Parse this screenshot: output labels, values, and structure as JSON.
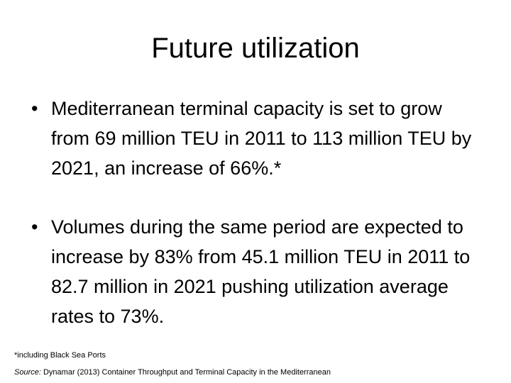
{
  "title": "Future utilization",
  "bullets": [
    "Mediterranean terminal capacity is set to grow from 69 million TEU in 2011 to 113 million TEU by 2021, an increase of 66%.*",
    "Volumes during the same period are expected to increase by 83% from 45.1 million TEU in 2011 to 82.7 million in 2021 pushing utilization average rates to 73%."
  ],
  "bullet_symbol": "•",
  "footnote": "*including Black Sea Ports",
  "source": {
    "label": "Source:",
    "text": "Dynamar (2013) Container Throughput and Terminal Capacity in the Mediterranean"
  }
}
